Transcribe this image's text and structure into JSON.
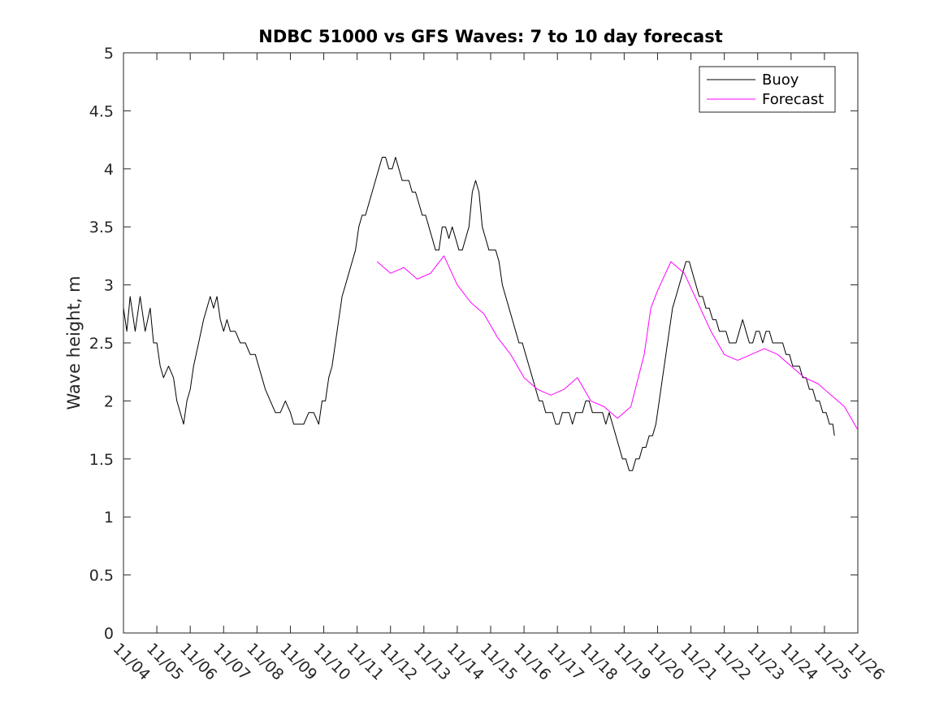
{
  "chart_data": {
    "type": "line",
    "title": "NDBC 51000 vs GFS Waves: 7 to 10 day forecast",
    "xlabel": "",
    "ylabel": "Wave height, m",
    "xlim": [
      0,
      22
    ],
    "ylim": [
      0,
      5
    ],
    "x_ticks": [
      "11/04",
      "11/05",
      "11/06",
      "11/07",
      "11/08",
      "11/09",
      "11/10",
      "11/11",
      "11/12",
      "11/13",
      "11/14",
      "11/15",
      "11/16",
      "11/17",
      "11/18",
      "11/19",
      "11/20",
      "11/21",
      "11/22",
      "11/23",
      "11/24",
      "11/25",
      "11/26"
    ],
    "x_ticks_note": "x values are days since 11/04 00:00",
    "y_ticks": [
      "0",
      "0.5",
      "1",
      "1.5",
      "2",
      "2.5",
      "3",
      "3.5",
      "4",
      "4.5",
      "5"
    ],
    "grid": false,
    "legend_position": "top-right",
    "legend": [
      {
        "label": "Buoy",
        "color": "#000000"
      },
      {
        "label": "Forecast",
        "color": "#ff00ff"
      }
    ],
    "series": [
      {
        "name": "Buoy",
        "color": "#000000",
        "points": [
          [
            0.0,
            2.8
          ],
          [
            0.1,
            2.6
          ],
          [
            0.2,
            2.9
          ],
          [
            0.35,
            2.6
          ],
          [
            0.5,
            2.9
          ],
          [
            0.65,
            2.6
          ],
          [
            0.8,
            2.8
          ],
          [
            0.9,
            2.5
          ],
          [
            1.0,
            2.5
          ],
          [
            1.1,
            2.3
          ],
          [
            1.2,
            2.2
          ],
          [
            1.35,
            2.3
          ],
          [
            1.5,
            2.2
          ],
          [
            1.6,
            2.0
          ],
          [
            1.7,
            1.9
          ],
          [
            1.8,
            1.8
          ],
          [
            1.9,
            2.0
          ],
          [
            2.0,
            2.1
          ],
          [
            2.1,
            2.3
          ],
          [
            2.25,
            2.5
          ],
          [
            2.4,
            2.7
          ],
          [
            2.5,
            2.8
          ],
          [
            2.6,
            2.9
          ],
          [
            2.7,
            2.8
          ],
          [
            2.8,
            2.9
          ],
          [
            2.9,
            2.7
          ],
          [
            3.0,
            2.6
          ],
          [
            3.1,
            2.7
          ],
          [
            3.2,
            2.6
          ],
          [
            3.35,
            2.6
          ],
          [
            3.5,
            2.5
          ],
          [
            3.65,
            2.5
          ],
          [
            3.8,
            2.4
          ],
          [
            3.95,
            2.4
          ],
          [
            4.05,
            2.3
          ],
          [
            4.15,
            2.2
          ],
          [
            4.25,
            2.1
          ],
          [
            4.4,
            2.0
          ],
          [
            4.55,
            1.9
          ],
          [
            4.7,
            1.9
          ],
          [
            4.85,
            2.0
          ],
          [
            5.0,
            1.9
          ],
          [
            5.1,
            1.8
          ],
          [
            5.25,
            1.8
          ],
          [
            5.4,
            1.8
          ],
          [
            5.55,
            1.9
          ],
          [
            5.7,
            1.9
          ],
          [
            5.85,
            1.8
          ],
          [
            5.95,
            2.0
          ],
          [
            6.05,
            2.0
          ],
          [
            6.15,
            2.2
          ],
          [
            6.25,
            2.3
          ],
          [
            6.35,
            2.5
          ],
          [
            6.45,
            2.7
          ],
          [
            6.55,
            2.9
          ],
          [
            6.65,
            3.0
          ],
          [
            6.75,
            3.1
          ],
          [
            6.85,
            3.2
          ],
          [
            6.95,
            3.3
          ],
          [
            7.05,
            3.5
          ],
          [
            7.15,
            3.6
          ],
          [
            7.25,
            3.6
          ],
          [
            7.35,
            3.7
          ],
          [
            7.45,
            3.8
          ],
          [
            7.55,
            3.9
          ],
          [
            7.65,
            4.0
          ],
          [
            7.75,
            4.1
          ],
          [
            7.85,
            4.1
          ],
          [
            7.95,
            4.0
          ],
          [
            8.05,
            4.0
          ],
          [
            8.15,
            4.1
          ],
          [
            8.25,
            4.0
          ],
          [
            8.35,
            3.9
          ],
          [
            8.45,
            3.9
          ],
          [
            8.55,
            3.9
          ],
          [
            8.65,
            3.8
          ],
          [
            8.75,
            3.8
          ],
          [
            8.85,
            3.7
          ],
          [
            8.95,
            3.6
          ],
          [
            9.05,
            3.6
          ],
          [
            9.15,
            3.5
          ],
          [
            9.25,
            3.4
          ],
          [
            9.35,
            3.3
          ],
          [
            9.45,
            3.3
          ],
          [
            9.55,
            3.5
          ],
          [
            9.65,
            3.5
          ],
          [
            9.75,
            3.4
          ],
          [
            9.85,
            3.5
          ],
          [
            9.95,
            3.4
          ],
          [
            10.05,
            3.3
          ],
          [
            10.15,
            3.3
          ],
          [
            10.25,
            3.4
          ],
          [
            10.35,
            3.5
          ],
          [
            10.45,
            3.8
          ],
          [
            10.55,
            3.9
          ],
          [
            10.65,
            3.8
          ],
          [
            10.75,
            3.5
          ],
          [
            10.85,
            3.4
          ],
          [
            10.95,
            3.3
          ],
          [
            11.05,
            3.3
          ],
          [
            11.15,
            3.3
          ],
          [
            11.25,
            3.2
          ],
          [
            11.35,
            3.0
          ],
          [
            11.45,
            2.9
          ],
          [
            11.55,
            2.8
          ],
          [
            11.65,
            2.7
          ],
          [
            11.75,
            2.6
          ],
          [
            11.85,
            2.5
          ],
          [
            11.95,
            2.5
          ],
          [
            12.05,
            2.4
          ],
          [
            12.15,
            2.3
          ],
          [
            12.25,
            2.2
          ],
          [
            12.35,
            2.1
          ],
          [
            12.45,
            2.0
          ],
          [
            12.55,
            2.0
          ],
          [
            12.65,
            1.9
          ],
          [
            12.75,
            1.9
          ],
          [
            12.85,
            1.9
          ],
          [
            12.95,
            1.8
          ],
          [
            13.05,
            1.8
          ],
          [
            13.15,
            1.9
          ],
          [
            13.25,
            1.9
          ],
          [
            13.35,
            1.9
          ],
          [
            13.45,
            1.8
          ],
          [
            13.55,
            1.9
          ],
          [
            13.65,
            1.9
          ],
          [
            13.75,
            1.9
          ],
          [
            13.85,
            2.0
          ],
          [
            13.95,
            2.0
          ],
          [
            14.05,
            1.9
          ],
          [
            14.15,
            1.9
          ],
          [
            14.25,
            1.9
          ],
          [
            14.35,
            1.9
          ],
          [
            14.45,
            1.8
          ],
          [
            14.55,
            1.9
          ],
          [
            14.65,
            1.8
          ],
          [
            14.75,
            1.7
          ],
          [
            14.85,
            1.6
          ],
          [
            14.95,
            1.5
          ],
          [
            15.05,
            1.5
          ],
          [
            15.15,
            1.4
          ],
          [
            15.25,
            1.4
          ],
          [
            15.35,
            1.5
          ],
          [
            15.45,
            1.5
          ],
          [
            15.55,
            1.6
          ],
          [
            15.65,
            1.6
          ],
          [
            15.75,
            1.7
          ],
          [
            15.85,
            1.7
          ],
          [
            15.95,
            1.8
          ],
          [
            16.05,
            2.0
          ],
          [
            16.15,
            2.2
          ],
          [
            16.25,
            2.4
          ],
          [
            16.35,
            2.6
          ],
          [
            16.45,
            2.8
          ],
          [
            16.55,
            2.9
          ],
          [
            16.65,
            3.0
          ],
          [
            16.75,
            3.1
          ],
          [
            16.85,
            3.2
          ],
          [
            16.95,
            3.2
          ],
          [
            17.05,
            3.1
          ],
          [
            17.15,
            3.0
          ],
          [
            17.25,
            2.9
          ],
          [
            17.35,
            2.9
          ],
          [
            17.45,
            2.8
          ],
          [
            17.55,
            2.8
          ],
          [
            17.65,
            2.7
          ],
          [
            17.75,
            2.7
          ],
          [
            17.85,
            2.6
          ],
          [
            17.95,
            2.6
          ],
          [
            18.05,
            2.6
          ],
          [
            18.15,
            2.5
          ],
          [
            18.25,
            2.5
          ],
          [
            18.35,
            2.5
          ],
          [
            18.45,
            2.6
          ],
          [
            18.55,
            2.7
          ],
          [
            18.65,
            2.6
          ],
          [
            18.75,
            2.5
          ],
          [
            18.85,
            2.5
          ],
          [
            18.95,
            2.6
          ],
          [
            19.05,
            2.6
          ],
          [
            19.15,
            2.5
          ],
          [
            19.25,
            2.6
          ],
          [
            19.35,
            2.6
          ],
          [
            19.45,
            2.5
          ],
          [
            19.55,
            2.5
          ],
          [
            19.65,
            2.5
          ],
          [
            19.75,
            2.5
          ],
          [
            19.85,
            2.4
          ],
          [
            19.95,
            2.4
          ],
          [
            20.05,
            2.3
          ],
          [
            20.15,
            2.3
          ],
          [
            20.25,
            2.3
          ],
          [
            20.35,
            2.2
          ],
          [
            20.45,
            2.2
          ],
          [
            20.55,
            2.1
          ],
          [
            20.65,
            2.1
          ],
          [
            20.75,
            2.0
          ],
          [
            20.85,
            2.0
          ],
          [
            20.95,
            1.9
          ],
          [
            21.05,
            1.9
          ],
          [
            21.15,
            1.8
          ],
          [
            21.25,
            1.8
          ],
          [
            21.3,
            1.7
          ]
        ]
      },
      {
        "name": "Forecast",
        "color": "#ff00ff",
        "points": [
          [
            7.6,
            3.2
          ],
          [
            8.0,
            3.1
          ],
          [
            8.4,
            3.15
          ],
          [
            8.8,
            3.05
          ],
          [
            9.2,
            3.1
          ],
          [
            9.6,
            3.25
          ],
          [
            10.0,
            3.0
          ],
          [
            10.4,
            2.85
          ],
          [
            10.8,
            2.75
          ],
          [
            11.2,
            2.55
          ],
          [
            11.6,
            2.4
          ],
          [
            12.0,
            2.2
          ],
          [
            12.4,
            2.1
          ],
          [
            12.8,
            2.05
          ],
          [
            13.2,
            2.1
          ],
          [
            13.6,
            2.2
          ],
          [
            14.0,
            2.0
          ],
          [
            14.4,
            1.95
          ],
          [
            14.8,
            1.85
          ],
          [
            15.2,
            1.95
          ],
          [
            15.6,
            2.4
          ],
          [
            15.8,
            2.8
          ],
          [
            16.0,
            2.95
          ],
          [
            16.4,
            3.2
          ],
          [
            16.8,
            3.1
          ],
          [
            17.2,
            2.85
          ],
          [
            17.6,
            2.6
          ],
          [
            18.0,
            2.4
          ],
          [
            18.4,
            2.35
          ],
          [
            18.8,
            2.4
          ],
          [
            19.2,
            2.45
          ],
          [
            19.6,
            2.4
          ],
          [
            20.0,
            2.3
          ],
          [
            20.4,
            2.2
          ],
          [
            20.8,
            2.15
          ],
          [
            21.2,
            2.05
          ],
          [
            21.6,
            1.95
          ],
          [
            22.0,
            1.75
          ]
        ]
      }
    ]
  }
}
